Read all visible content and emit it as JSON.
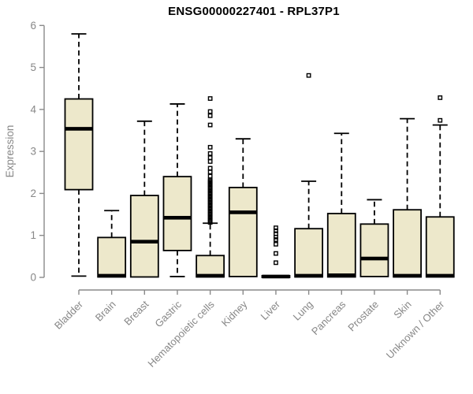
{
  "title": "ENSG00000227401 - RPL37P1",
  "colors": {
    "box_fill": "#EDE8CB",
    "box_border": "#000000",
    "median": "#000000",
    "whisker": "#000000",
    "axis": "#8a8a8a",
    "tick_label": "#878787",
    "title_color": "#000000",
    "background": "#ffffff"
  },
  "chart_data": {
    "type": "boxplot",
    "title": "ENSG00000227401 - RPL37P1",
    "xlabel": "",
    "ylabel": "Expression",
    "ylim": [
      0,
      6
    ],
    "yticks": [
      0,
      1,
      2,
      3,
      4,
      5,
      6
    ],
    "grid": false,
    "legend": false,
    "categories": [
      "Bladder",
      "Brain",
      "Breast",
      "Gastric",
      "Hematopoietic cells",
      "Kidney",
      "Liver",
      "Lung",
      "Pancreas",
      "Prostate",
      "Skin",
      "Unknown / Other"
    ],
    "boxes": [
      {
        "category": "Bladder",
        "whisker_low": 0.03,
        "q1": 2.09,
        "median": 3.54,
        "q3": 4.25,
        "whisker_high": 5.8,
        "outliers": []
      },
      {
        "category": "Brain",
        "whisker_low": 0.0,
        "q1": 0.01,
        "median": 0.04,
        "q3": 0.95,
        "whisker_high": 1.59,
        "outliers": []
      },
      {
        "category": "Breast",
        "whisker_low": 0.0,
        "q1": 0.01,
        "median": 0.85,
        "q3": 1.95,
        "whisker_high": 3.72,
        "outliers": []
      },
      {
        "category": "Gastric",
        "whisker_low": 0.02,
        "q1": 0.64,
        "median": 1.42,
        "q3": 2.4,
        "whisker_high": 4.13,
        "outliers": []
      },
      {
        "category": "Hematopoietic cells",
        "whisker_low": 0.0,
        "q1": 0.01,
        "median": 0.04,
        "q3": 0.52,
        "whisker_high": 1.29,
        "outliers": [
          1.31,
          1.35,
          1.38,
          1.42,
          1.45,
          1.49,
          1.52,
          1.56,
          1.59,
          1.63,
          1.66,
          1.7,
          1.73,
          1.77,
          1.8,
          1.84,
          1.87,
          1.91,
          1.94,
          1.98,
          2.01,
          2.05,
          2.08,
          2.12,
          2.15,
          2.19,
          2.22,
          2.26,
          2.29,
          2.32,
          2.41,
          2.51,
          2.6,
          2.76,
          2.85,
          2.95,
          3.1,
          3.63,
          3.85,
          3.95,
          4.26
        ]
      },
      {
        "category": "Kidney",
        "whisker_low": 0.0,
        "q1": 0.02,
        "median": 1.55,
        "q3": 2.14,
        "whisker_high": 3.3,
        "outliers": []
      },
      {
        "category": "Liver",
        "whisker_low": 0.0,
        "q1": 0.0,
        "median": 0.02,
        "q3": 0.04,
        "whisker_high": 0.05,
        "outliers": [
          0.35,
          0.57,
          0.79,
          0.9,
          0.96,
          1.04,
          1.11,
          1.18
        ]
      },
      {
        "category": "Lung",
        "whisker_low": 0.0,
        "q1": 0.01,
        "median": 0.04,
        "q3": 1.16,
        "whisker_high": 2.29,
        "outliers": [
          4.81
        ]
      },
      {
        "category": "Pancreas",
        "whisker_low": 0.0,
        "q1": 0.01,
        "median": 0.05,
        "q3": 1.52,
        "whisker_high": 3.43,
        "outliers": []
      },
      {
        "category": "Prostate",
        "whisker_low": 0.01,
        "q1": 0.02,
        "median": 0.45,
        "q3": 1.27,
        "whisker_high": 1.85,
        "outliers": []
      },
      {
        "category": "Skin",
        "whisker_low": 0.0,
        "q1": 0.01,
        "median": 0.04,
        "q3": 1.61,
        "whisker_high": 3.78,
        "outliers": []
      },
      {
        "category": "Unknown / Other",
        "whisker_low": 0.0,
        "q1": 0.01,
        "median": 0.04,
        "q3": 1.44,
        "whisker_high": 3.63,
        "outliers": [
          3.74,
          4.28
        ]
      }
    ]
  }
}
